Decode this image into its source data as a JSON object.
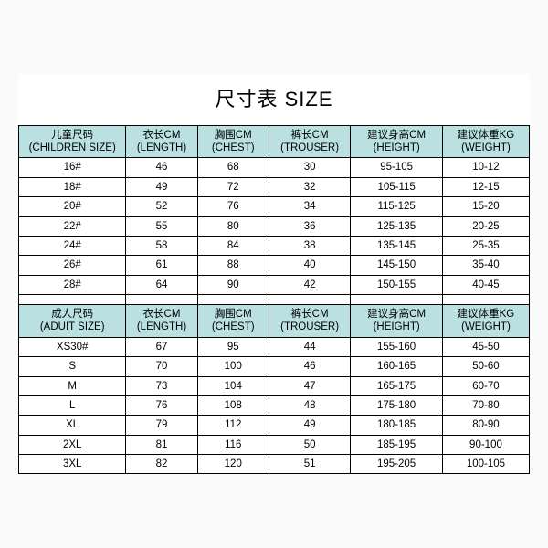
{
  "title": "尺寸表 SIZE",
  "colors": {
    "header_bg": "#bae0e2",
    "border": "#000000",
    "background": "#ffffff"
  },
  "columns": [
    {
      "cn": "儿童尺码",
      "en": "(CHILDREN SIZE)"
    },
    {
      "cn": "衣长CM",
      "en": "(LENGTH)"
    },
    {
      "cn": "胸围CM",
      "en": "(CHEST)"
    },
    {
      "cn": "裤长CM",
      "en": "(TROUSER)"
    },
    {
      "cn": "建议身高CM",
      "en": "(HEIGHT)"
    },
    {
      "cn": "建议体重KG",
      "en": "(WEIGHT)"
    }
  ],
  "children_rows": [
    [
      "16#",
      "46",
      "68",
      "30",
      "95-105",
      "10-12"
    ],
    [
      "18#",
      "49",
      "72",
      "32",
      "105-115",
      "12-15"
    ],
    [
      "20#",
      "52",
      "76",
      "34",
      "115-125",
      "15-20"
    ],
    [
      "22#",
      "55",
      "80",
      "36",
      "125-135",
      "20-25"
    ],
    [
      "24#",
      "58",
      "84",
      "38",
      "135-145",
      "25-35"
    ],
    [
      "26#",
      "61",
      "88",
      "40",
      "145-150",
      "35-40"
    ],
    [
      "28#",
      "64",
      "90",
      "42",
      "150-155",
      "40-45"
    ]
  ],
  "adult_columns": [
    {
      "cn": "成人尺码",
      "en": "(ADUIT SIZE)"
    },
    {
      "cn": "衣长CM",
      "en": "(LENGTH)"
    },
    {
      "cn": "胸围CM",
      "en": "(CHEST)"
    },
    {
      "cn": "裤长CM",
      "en": "(TROUSER)"
    },
    {
      "cn": "建议身高CM",
      "en": "(HEIGHT)"
    },
    {
      "cn": "建议体重KG",
      "en": "(WEIGHT)"
    }
  ],
  "adult_rows": [
    [
      "XS30#",
      "67",
      "95",
      "44",
      "155-160",
      "45-50"
    ],
    [
      "S",
      "70",
      "100",
      "46",
      "160-165",
      "50-60"
    ],
    [
      "M",
      "73",
      "104",
      "47",
      "165-175",
      "60-70"
    ],
    [
      "L",
      "76",
      "108",
      "48",
      "175-180",
      "70-80"
    ],
    [
      "XL",
      "79",
      "112",
      "49",
      "180-185",
      "80-90"
    ],
    [
      "2XL",
      "81",
      "116",
      "50",
      "185-195",
      "90-100"
    ],
    [
      "3XL",
      "82",
      "120",
      "51",
      "195-205",
      "100-105"
    ]
  ]
}
